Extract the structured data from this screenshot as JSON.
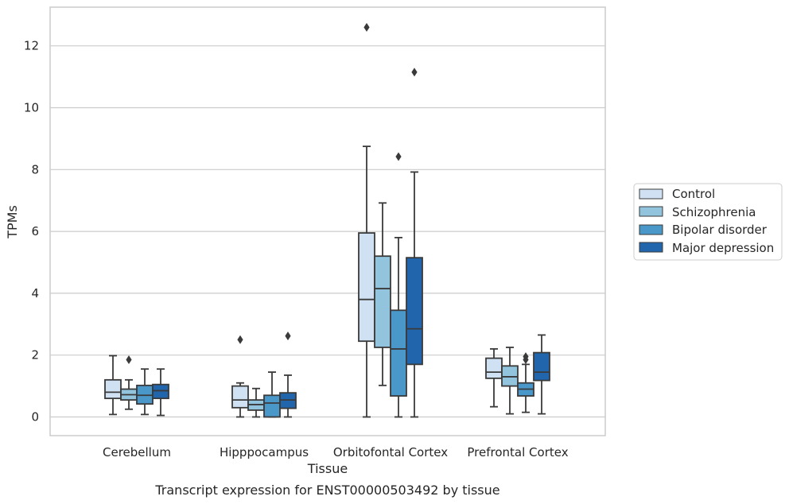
{
  "chart_data": {
    "type": "box",
    "xlabel": "Tissue",
    "ylabel": "TPMs",
    "caption": "Transcript expression for ENST00000503492 by tissue",
    "ylim": [
      -0.6,
      13.2
    ],
    "yticks": [
      "0",
      "2",
      "4",
      "6",
      "8",
      "10",
      "12"
    ],
    "grid": "horizontal",
    "legend_position": "right",
    "categories": [
      "Cerebellum",
      "Hipppocampus",
      "Orbitofontal Cortex",
      "Prefrontal Cortex"
    ],
    "series": [
      {
        "name": "Control",
        "color": "#cfe1f2",
        "boxes": [
          {
            "whislo": 0.08,
            "q1": 0.6,
            "med": 0.8,
            "q3": 1.2,
            "whishi": 1.98,
            "fliers": []
          },
          {
            "whislo": 0.0,
            "q1": 0.3,
            "med": 0.55,
            "q3": 1.0,
            "whishi": 1.1,
            "fliers": [
              2.5
            ]
          },
          {
            "whislo": 0.0,
            "q1": 2.45,
            "med": 3.8,
            "q3": 5.95,
            "whishi": 8.75,
            "fliers": [
              12.6
            ]
          },
          {
            "whislo": 0.33,
            "q1": 1.25,
            "med": 1.45,
            "q3": 1.9,
            "whishi": 2.2,
            "fliers": []
          }
        ]
      },
      {
        "name": "Schizophrenia",
        "color": "#93c4de",
        "boxes": [
          {
            "whislo": 0.25,
            "q1": 0.55,
            "med": 0.72,
            "q3": 0.9,
            "whishi": 1.2,
            "fliers": [
              1.85
            ]
          },
          {
            "whislo": 0.0,
            "q1": 0.22,
            "med": 0.4,
            "q3": 0.55,
            "whishi": 0.92,
            "fliers": []
          },
          {
            "whislo": 1.02,
            "q1": 2.25,
            "med": 4.15,
            "q3": 5.2,
            "whishi": 6.92,
            "fliers": []
          },
          {
            "whislo": 0.1,
            "q1": 1.0,
            "med": 1.3,
            "q3": 1.65,
            "whishi": 2.25,
            "fliers": []
          }
        ]
      },
      {
        "name": "Bipolar disorder",
        "color": "#4a98c9",
        "boxes": [
          {
            "whislo": 0.08,
            "q1": 0.42,
            "med": 0.7,
            "q3": 1.02,
            "whishi": 1.55,
            "fliers": []
          },
          {
            "whislo": 0.0,
            "q1": 0.0,
            "med": 0.45,
            "q3": 0.7,
            "whishi": 1.45,
            "fliers": []
          },
          {
            "whislo": 0.0,
            "q1": 0.68,
            "med": 2.2,
            "q3": 3.45,
            "whishi": 5.8,
            "fliers": [
              8.42
            ]
          },
          {
            "whislo": 0.15,
            "q1": 0.68,
            "med": 0.9,
            "q3": 1.1,
            "whishi": 1.7,
            "fliers": [
              1.85,
              1.95
            ]
          }
        ]
      },
      {
        "name": "Major depression",
        "color": "#2166ac",
        "boxes": [
          {
            "whislo": 0.05,
            "q1": 0.6,
            "med": 0.85,
            "q3": 1.05,
            "whishi": 1.55,
            "fliers": []
          },
          {
            "whislo": 0.0,
            "q1": 0.28,
            "med": 0.55,
            "q3": 0.78,
            "whishi": 1.35,
            "fliers": [
              2.62
            ]
          },
          {
            "whislo": 0.0,
            "q1": 1.7,
            "med": 2.85,
            "q3": 5.15,
            "whishi": 7.92,
            "fliers": [
              11.15
            ]
          },
          {
            "whislo": 0.1,
            "q1": 1.18,
            "med": 1.45,
            "q3": 2.08,
            "whishi": 2.65,
            "fliers": []
          }
        ]
      }
    ]
  }
}
